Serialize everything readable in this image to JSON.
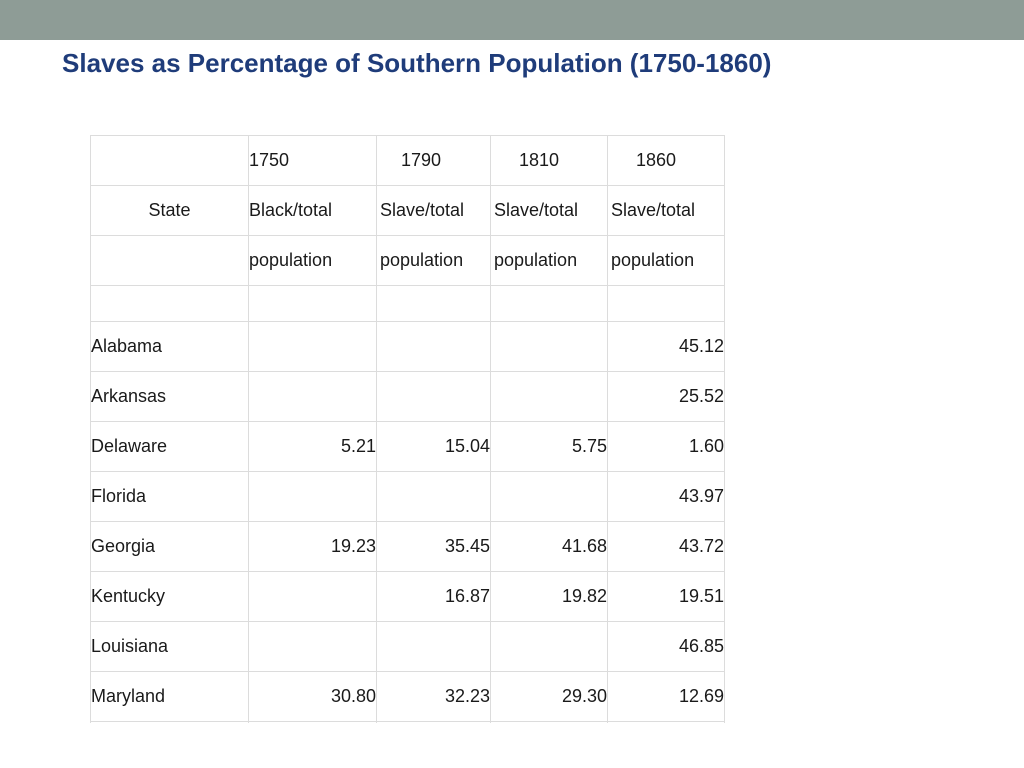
{
  "slide": {
    "title": "Slaves as Percentage of Southern Population (1750-1860)"
  },
  "table": {
    "years": [
      "1750",
      "1790",
      "1810",
      "1860"
    ],
    "state_header": "State",
    "measure_row": [
      "Black/total",
      "Slave/total",
      "Slave/total",
      "Slave/total"
    ],
    "unit_row": [
      "population",
      "population",
      "population",
      "population"
    ],
    "rows": [
      {
        "state": "Alabama",
        "v1750": "",
        "v1790": "",
        "v1810": "",
        "v1860": "45.12"
      },
      {
        "state": "Arkansas",
        "v1750": "",
        "v1790": "",
        "v1810": "",
        "v1860": "25.52"
      },
      {
        "state": "Delaware",
        "v1750": "5.21",
        "v1790": "15.04",
        "v1810": "5.75",
        "v1860": "1.60"
      },
      {
        "state": "Florida",
        "v1750": "",
        "v1790": "",
        "v1810": "",
        "v1860": "43.97"
      },
      {
        "state": "Georgia",
        "v1750": "19.23",
        "v1790": "35.45",
        "v1810": "41.68",
        "v1860": "43.72"
      },
      {
        "state": "Kentucky",
        "v1750": "",
        "v1790": "16.87",
        "v1810": "19.82",
        "v1860": "19.51"
      },
      {
        "state": "Louisiana",
        "v1750": "",
        "v1790": "",
        "v1810": "",
        "v1860": "46.85"
      },
      {
        "state": "Maryland",
        "v1750": "30.80",
        "v1790": "32.23",
        "v1810": "29.30",
        "v1860": "12.69"
      },
      {
        "state": "",
        "v1750": "",
        "v1790": "",
        "v1810": "",
        "v1860": ""
      }
    ]
  },
  "colors": {
    "top_bar": "#8e9c96",
    "title": "#1f3c7a",
    "grid": "#dcdcdc"
  }
}
